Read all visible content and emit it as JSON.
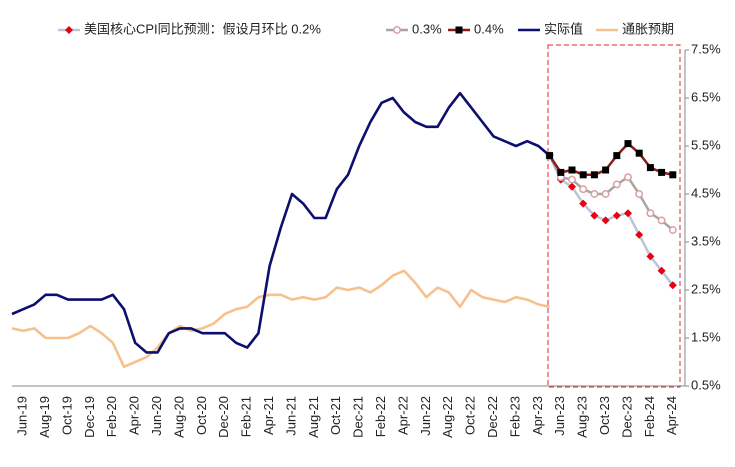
{
  "chart_data": {
    "type": "line",
    "categories": [
      null,
      "Jun-19",
      null,
      "Aug-19",
      null,
      "Oct-19",
      null,
      "Dec-19",
      null,
      "Feb-20",
      null,
      "Apr-20",
      null,
      "Jun-20",
      null,
      "Aug-20",
      null,
      "Oct-20",
      null,
      "Dec-20",
      null,
      "Feb-21",
      null,
      "Apr-21",
      null,
      "Jun-21",
      null,
      "Aug-21",
      null,
      "Oct-21",
      null,
      "Dec-21",
      null,
      "Feb-22",
      null,
      "Apr-22",
      null,
      "Jun-22",
      null,
      "Aug-22",
      null,
      "Oct-22",
      null,
      "Dec-22",
      null,
      "Feb-23",
      null,
      "Apr-23",
      null,
      "Jun-23",
      null,
      "Aug-23",
      null,
      "Oct-23",
      null,
      "Dec-23",
      null,
      "Feb-24",
      null,
      "Apr-24"
    ],
    "series": [
      {
        "name": "美国核心CPI同比预测：假设月环比 0.2%",
        "color": "#b9c6d8",
        "marker_color": "#e60012",
        "marker": "diamond",
        "values": [
          null,
          null,
          null,
          null,
          null,
          null,
          null,
          null,
          null,
          null,
          null,
          null,
          null,
          null,
          null,
          null,
          null,
          null,
          null,
          null,
          null,
          null,
          null,
          null,
          null,
          null,
          null,
          null,
          null,
          null,
          null,
          null,
          null,
          null,
          null,
          null,
          null,
          null,
          null,
          null,
          null,
          null,
          null,
          null,
          null,
          null,
          null,
          null,
          5.3,
          4.8,
          4.65,
          4.3,
          4.05,
          3.95,
          4.05,
          4.1,
          3.65,
          3.2,
          2.9,
          2.6
        ]
      },
      {
        "name": "0.3%",
        "color": "#a6a6a6",
        "marker_color": "#d9a0a0",
        "marker": "circle",
        "values": [
          null,
          null,
          null,
          null,
          null,
          null,
          null,
          null,
          null,
          null,
          null,
          null,
          null,
          null,
          null,
          null,
          null,
          null,
          null,
          null,
          null,
          null,
          null,
          null,
          null,
          null,
          null,
          null,
          null,
          null,
          null,
          null,
          null,
          null,
          null,
          null,
          null,
          null,
          null,
          null,
          null,
          null,
          null,
          null,
          null,
          null,
          null,
          null,
          5.3,
          4.85,
          4.8,
          4.6,
          4.5,
          4.5,
          4.7,
          4.85,
          4.5,
          4.1,
          3.95,
          3.75
        ]
      },
      {
        "name": "0.4%",
        "color": "#8b1c1c",
        "marker_color": "#000000",
        "marker": "square",
        "values": [
          null,
          null,
          null,
          null,
          null,
          null,
          null,
          null,
          null,
          null,
          null,
          null,
          null,
          null,
          null,
          null,
          null,
          null,
          null,
          null,
          null,
          null,
          null,
          null,
          null,
          null,
          null,
          null,
          null,
          null,
          null,
          null,
          null,
          null,
          null,
          null,
          null,
          null,
          null,
          null,
          null,
          null,
          null,
          null,
          null,
          null,
          null,
          null,
          5.3,
          4.95,
          5.0,
          4.9,
          4.9,
          5.0,
          5.3,
          5.55,
          5.35,
          5.05,
          4.95,
          4.9
        ]
      },
      {
        "name": "实际值",
        "color": "#0c0f6e",
        "values": [
          2.0,
          2.1,
          2.2,
          2.4,
          2.4,
          2.3,
          2.3,
          2.3,
          2.3,
          2.4,
          2.1,
          1.4,
          1.2,
          1.2,
          1.6,
          1.7,
          1.7,
          1.6,
          1.6,
          1.6,
          1.4,
          1.3,
          1.6,
          3.0,
          3.8,
          4.5,
          4.3,
          4.0,
          4.0,
          4.6,
          4.9,
          5.5,
          6.0,
          6.4,
          6.5,
          6.2,
          6.0,
          5.9,
          5.9,
          6.3,
          6.6,
          6.3,
          6.0,
          5.7,
          5.6,
          5.5,
          5.6,
          5.5,
          5.3,
          null,
          null,
          null,
          null,
          null,
          null,
          null,
          null,
          null,
          null,
          null
        ]
      },
      {
        "name": "通胀预期",
        "color": "#f6c18f",
        "values": [
          1.7,
          1.65,
          1.7,
          1.5,
          1.5,
          1.5,
          1.6,
          1.75,
          1.6,
          1.4,
          0.9,
          1.0,
          1.1,
          1.3,
          1.6,
          1.75,
          1.65,
          1.7,
          1.8,
          2.0,
          2.1,
          2.15,
          2.35,
          2.4,
          2.4,
          2.3,
          2.35,
          2.3,
          2.35,
          2.55,
          2.5,
          2.55,
          2.45,
          2.6,
          2.8,
          2.9,
          2.65,
          2.35,
          2.55,
          2.45,
          2.15,
          2.5,
          2.35,
          2.3,
          2.25,
          2.35,
          2.3,
          2.2,
          2.15,
          null,
          null,
          null,
          null,
          null,
          null,
          null,
          null,
          null,
          null,
          null
        ]
      }
    ],
    "ylim": [
      0.5,
      7.5
    ],
    "yticks": [
      {
        "value": 0.5,
        "label": "0.5%"
      },
      {
        "value": 1.5,
        "label": "1.5%"
      },
      {
        "value": 2.5,
        "label": "2.5%"
      },
      {
        "value": 3.5,
        "label": "3.5%"
      },
      {
        "value": 4.5,
        "label": "4.5%"
      },
      {
        "value": 5.5,
        "label": "5.5%"
      },
      {
        "value": 6.5,
        "label": "6.5%"
      },
      {
        "value": 7.5,
        "label": "7.5%"
      }
    ],
    "y_axis_side": "right",
    "grid": false,
    "legend": "top"
  }
}
